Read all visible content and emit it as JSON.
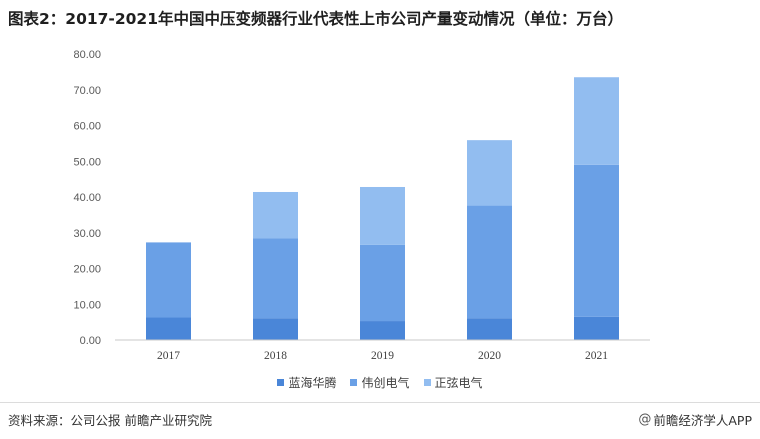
{
  "title": "图表2：2017-2021年中国中压变频器行业代表性上市公司产量变动情况（单位：万台）",
  "footer": {
    "source": "资料来源：公司公报 前瞻产业研究院",
    "brand_icon": "@",
    "brand": "前瞻经济学人APP"
  },
  "chart_data": {
    "type": "bar",
    "stacked": true,
    "categories": [
      "2017",
      "2018",
      "2019",
      "2020",
      "2021"
    ],
    "series": [
      {
        "name": "蓝海华腾",
        "color": "#4a86d8",
        "values": [
          6.3,
          6.1,
          5.3,
          6.1,
          6.5
        ]
      },
      {
        "name": "伟创电气",
        "color": "#6aa0e6",
        "values": [
          21.0,
          22.3,
          21.3,
          31.5,
          42.5
        ]
      },
      {
        "name": "正弦电气",
        "color": "#92bdf0",
        "values": [
          0,
          13.0,
          16.2,
          18.3,
          24.5
        ]
      }
    ],
    "ylim": [
      0,
      80
    ],
    "yticks": [
      "0.00",
      "10.00",
      "20.00",
      "30.00",
      "40.00",
      "50.00",
      "60.00",
      "70.00",
      "80.00"
    ],
    "grid": false,
    "legend_position": "bottom"
  }
}
